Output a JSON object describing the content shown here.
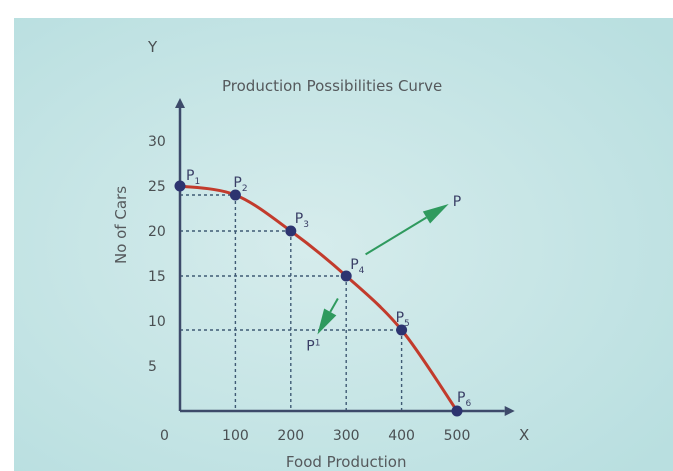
{
  "chart_data": {
    "type": "line",
    "title": "Production Possibilities Curve",
    "xlabel": "Food Production",
    "ylabel": "No of Cars",
    "x_axis_letter": "X",
    "y_axis_letter": "Y",
    "origin_label": "0",
    "xlim": [
      0,
      550
    ],
    "ylim": [
      0,
      32
    ],
    "x_ticks": [
      100,
      200,
      300,
      400,
      500
    ],
    "y_ticks": [
      5,
      10,
      15,
      20,
      25,
      30
    ],
    "grid": false,
    "series": [
      {
        "points": [
          {
            "x": 0,
            "y": 25,
            "label": "P",
            "sub": "1"
          },
          {
            "x": 100,
            "y": 24,
            "label": "P",
            "sub": "2"
          },
          {
            "x": 200,
            "y": 20,
            "label": "P",
            "sub": "3"
          },
          {
            "x": 300,
            "y": 15,
            "label": "P",
            "sub": "4"
          },
          {
            "x": 400,
            "y": 9,
            "label": "P",
            "sub": "5"
          },
          {
            "x": 500,
            "y": 0,
            "label": "P",
            "sub": "6"
          }
        ]
      }
    ],
    "annotations": [
      {
        "label": "P",
        "from": {
          "x": 335,
          "y": 17.4
        },
        "to": {
          "x": 485,
          "y": 23
        },
        "position": "outside-curve"
      },
      {
        "label": "P",
        "sub": "1",
        "from": {
          "x": 285,
          "y": 12.5
        },
        "to": {
          "x": 248,
          "y": 8.5
        },
        "position": "inside-curve"
      }
    ],
    "colors": {
      "background": "#bfe3e4",
      "curve": "#c23b2c",
      "points": "#2d3470",
      "axes": "#3d4a6a",
      "arrows": "#2f9a5e",
      "guides": "#3f5a74"
    }
  }
}
